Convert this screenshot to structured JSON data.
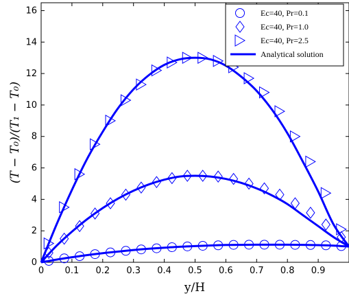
{
  "chart_data": {
    "type": "line",
    "xlabel": "y/H",
    "ylabel": "(T − T₀)/(T₁ − T₀)",
    "xlim": [
      0,
      1
    ],
    "ylim": [
      0,
      16.5
    ],
    "xticks": [
      0,
      0.1,
      0.2,
      0.3,
      0.4,
      0.5,
      0.6,
      0.7,
      0.8,
      0.9
    ],
    "xtick_labels": [
      "0",
      "0.1",
      "0.2",
      "0.3",
      "0.4",
      "0.5",
      "0.6",
      "0.7",
      "0.8",
      "0.9"
    ],
    "yticks": [
      0,
      2,
      4,
      6,
      8,
      10,
      12,
      14,
      16
    ],
    "ytick_labels": [
      "0",
      "2",
      "4",
      "6",
      "8",
      "10",
      "12",
      "14",
      "16"
    ],
    "grid": false,
    "legend_position": "top-right",
    "color": "#0000ff",
    "series": [
      {
        "name": "Ec=40, Pr=0.1",
        "marker": "circle",
        "x": [
          0.025,
          0.075,
          0.125,
          0.175,
          0.225,
          0.275,
          0.325,
          0.375,
          0.425,
          0.475,
          0.525,
          0.575,
          0.625,
          0.675,
          0.725,
          0.775,
          0.825,
          0.875,
          0.925,
          0.975
        ],
        "y": [
          0.09,
          0.25,
          0.39,
          0.52,
          0.63,
          0.73,
          0.82,
          0.89,
          0.96,
          1.01,
          1.05,
          1.08,
          1.11,
          1.12,
          1.12,
          1.12,
          1.11,
          1.1,
          1.08,
          1.03
        ]
      },
      {
        "name": "Ec=40, Pr=1.0",
        "marker": "diamond",
        "x": [
          0.025,
          0.075,
          0.125,
          0.175,
          0.225,
          0.275,
          0.325,
          0.375,
          0.425,
          0.475,
          0.525,
          0.575,
          0.625,
          0.675,
          0.725,
          0.775,
          0.825,
          0.875,
          0.925,
          0.975
        ],
        "y": [
          0.6,
          1.5,
          2.3,
          3.1,
          3.75,
          4.3,
          4.75,
          5.1,
          5.35,
          5.5,
          5.5,
          5.45,
          5.3,
          5.0,
          4.7,
          4.3,
          3.75,
          3.15,
          2.4,
          1.6
        ]
      },
      {
        "name": "Ec=40, Pr=2.5",
        "marker": "triangle-right",
        "x": [
          0.025,
          0.075,
          0.125,
          0.175,
          0.225,
          0.275,
          0.325,
          0.375,
          0.425,
          0.475,
          0.525,
          0.575,
          0.625,
          0.675,
          0.725,
          0.775,
          0.825,
          0.875,
          0.925,
          0.975
        ],
        "y": [
          1.2,
          3.5,
          5.6,
          7.5,
          9.0,
          10.3,
          11.3,
          12.2,
          12.7,
          13.0,
          13.0,
          12.8,
          12.4,
          11.7,
          10.8,
          9.6,
          8.0,
          6.4,
          4.4,
          2.1
        ]
      }
    ],
    "analytical": {
      "name": "Analytical solution",
      "curves": [
        {
          "x": [
            0,
            0.05,
            0.1,
            0.15,
            0.2,
            0.25,
            0.3,
            0.35,
            0.4,
            0.45,
            0.5,
            0.55,
            0.6,
            0.65,
            0.7,
            0.75,
            0.8,
            0.85,
            0.9,
            0.95,
            1.0
          ],
          "y": [
            0,
            0.17,
            0.32,
            0.46,
            0.58,
            0.68,
            0.78,
            0.86,
            0.93,
            0.99,
            1.03,
            1.07,
            1.1,
            1.11,
            1.12,
            1.12,
            1.12,
            1.11,
            1.09,
            1.06,
            1.0
          ]
        },
        {
          "x": [
            0,
            0.05,
            0.1,
            0.15,
            0.2,
            0.25,
            0.3,
            0.35,
            0.4,
            0.45,
            0.5,
            0.55,
            0.6,
            0.65,
            0.7,
            0.75,
            0.8,
            0.85,
            0.9,
            0.95,
            1.0
          ],
          "y": [
            0,
            1.05,
            1.95,
            2.75,
            3.45,
            4.05,
            4.55,
            4.95,
            5.25,
            5.45,
            5.5,
            5.45,
            5.3,
            5.05,
            4.7,
            4.25,
            3.7,
            3.0,
            2.3,
            1.6,
            1.0
          ]
        },
        {
          "x": [
            0,
            0.05,
            0.1,
            0.15,
            0.2,
            0.25,
            0.3,
            0.35,
            0.4,
            0.45,
            0.5,
            0.55,
            0.6,
            0.65,
            0.7,
            0.75,
            0.8,
            0.85,
            0.9,
            0.95,
            1.0
          ],
          "y": [
            0,
            2.4,
            4.6,
            6.6,
            8.3,
            9.8,
            11.0,
            11.9,
            12.55,
            12.9,
            13.0,
            12.9,
            12.5,
            11.8,
            10.9,
            9.7,
            8.2,
            6.4,
            4.5,
            2.4,
            1.0
          ]
        }
      ]
    }
  }
}
